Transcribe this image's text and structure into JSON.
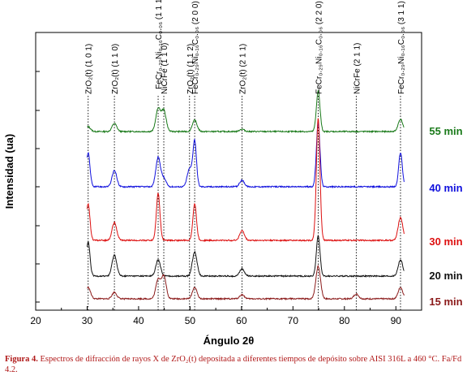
{
  "chart_data": {
    "type": "line",
    "xlabel": "Ángulo 2θ",
    "ylabel": "Intensidad (ua)",
    "xlim": [
      20,
      95
    ],
    "xticks": [
      20,
      30,
      40,
      50,
      60,
      70,
      80,
      90
    ],
    "grid": false,
    "legend": "right, inline labels at end of each trace",
    "peaks": [
      {
        "x": 30.2,
        "label": "ZrO₂(t) (1 0 1)"
      },
      {
        "x": 35.3,
        "label": "ZrO₂(t) (1 1 0)"
      },
      {
        "x": 43.8,
        "label": "FeCr₀.₂₉Ni₀.₁₆C₀.₀₆ (1 1 1)"
      },
      {
        "x": 44.9,
        "label": "NiCrFe (1 1 0)"
      },
      {
        "x": 49.9,
        "label": "ZrO₂(t) (1 1 2)"
      },
      {
        "x": 50.9,
        "label": "FeCr₀.₂₉Ni₀.₁₆C₀.₀₆ (2 0 0)"
      },
      {
        "x": 60.1,
        "label": "ZrO₂(t) (2 1 1)"
      },
      {
        "x": 74.9,
        "label": "FeCr₀.₂₉Ni₀.₁₆C₀.₀₆ (2 2 0)"
      },
      {
        "x": 82.3,
        "label": "NiCrFe (2 1 1)"
      },
      {
        "x": 90.9,
        "label": "FeCr₀.₂₉Ni₀.₁₆C₀.₀₆ (3 1 1)"
      }
    ],
    "series": [
      {
        "name": "55 min",
        "color": "#1a7a1a",
        "peaks": [
          {
            "x": 30.2,
            "h": 6
          },
          {
            "x": 35.3,
            "h": 10
          },
          {
            "x": 43.8,
            "h": 28
          },
          {
            "x": 44.9,
            "h": 26
          },
          {
            "x": 50.9,
            "h": 14
          },
          {
            "x": 60.1,
            "h": 3
          },
          {
            "x": 74.9,
            "h": 50
          },
          {
            "x": 90.9,
            "h": 15
          }
        ]
      },
      {
        "name": "40 min",
        "color": "#1010dd",
        "peaks": [
          {
            "x": 30.2,
            "h": 42
          },
          {
            "x": 35.3,
            "h": 20
          },
          {
            "x": 43.8,
            "h": 36
          },
          {
            "x": 44.9,
            "h": 10
          },
          {
            "x": 49.9,
            "h": 22
          },
          {
            "x": 50.9,
            "h": 56
          },
          {
            "x": 60.1,
            "h": 8
          },
          {
            "x": 74.9,
            "h": 78
          },
          {
            "x": 90.9,
            "h": 42
          }
        ]
      },
      {
        "name": "30 min",
        "color": "#dd1010",
        "peaks": [
          {
            "x": 30.2,
            "h": 45
          },
          {
            "x": 35.3,
            "h": 22
          },
          {
            "x": 43.8,
            "h": 58
          },
          {
            "x": 50.9,
            "h": 45
          },
          {
            "x": 60.1,
            "h": 12
          },
          {
            "x": 74.9,
            "h": 150
          },
          {
            "x": 90.9,
            "h": 28
          }
        ]
      },
      {
        "name": "20 min",
        "color": "#111111",
        "peaks": [
          {
            "x": 30.2,
            "h": 42
          },
          {
            "x": 35.3,
            "h": 26
          },
          {
            "x": 43.8,
            "h": 20
          },
          {
            "x": 50.9,
            "h": 30
          },
          {
            "x": 60.1,
            "h": 9
          },
          {
            "x": 74.9,
            "h": 50
          },
          {
            "x": 90.9,
            "h": 20
          }
        ]
      },
      {
        "name": "15 min",
        "color": "#8b1a1a",
        "peaks": [
          {
            "x": 30.2,
            "h": 14
          },
          {
            "x": 35.3,
            "h": 8
          },
          {
            "x": 43.8,
            "h": 24
          },
          {
            "x": 44.9,
            "h": 28
          },
          {
            "x": 50.9,
            "h": 14
          },
          {
            "x": 60.1,
            "h": 5
          },
          {
            "x": 74.9,
            "h": 40
          },
          {
            "x": 82.3,
            "h": 6
          },
          {
            "x": 90.9,
            "h": 14
          }
        ]
      }
    ]
  },
  "caption": {
    "figure": "Figura 4.",
    "text": "Espectros de difracción de rayos X de ZrO₂(t) depositada a diferentes tiempos de depósito sobre AISI 316L a 460 °C. Fa/Fd 4.2."
  }
}
